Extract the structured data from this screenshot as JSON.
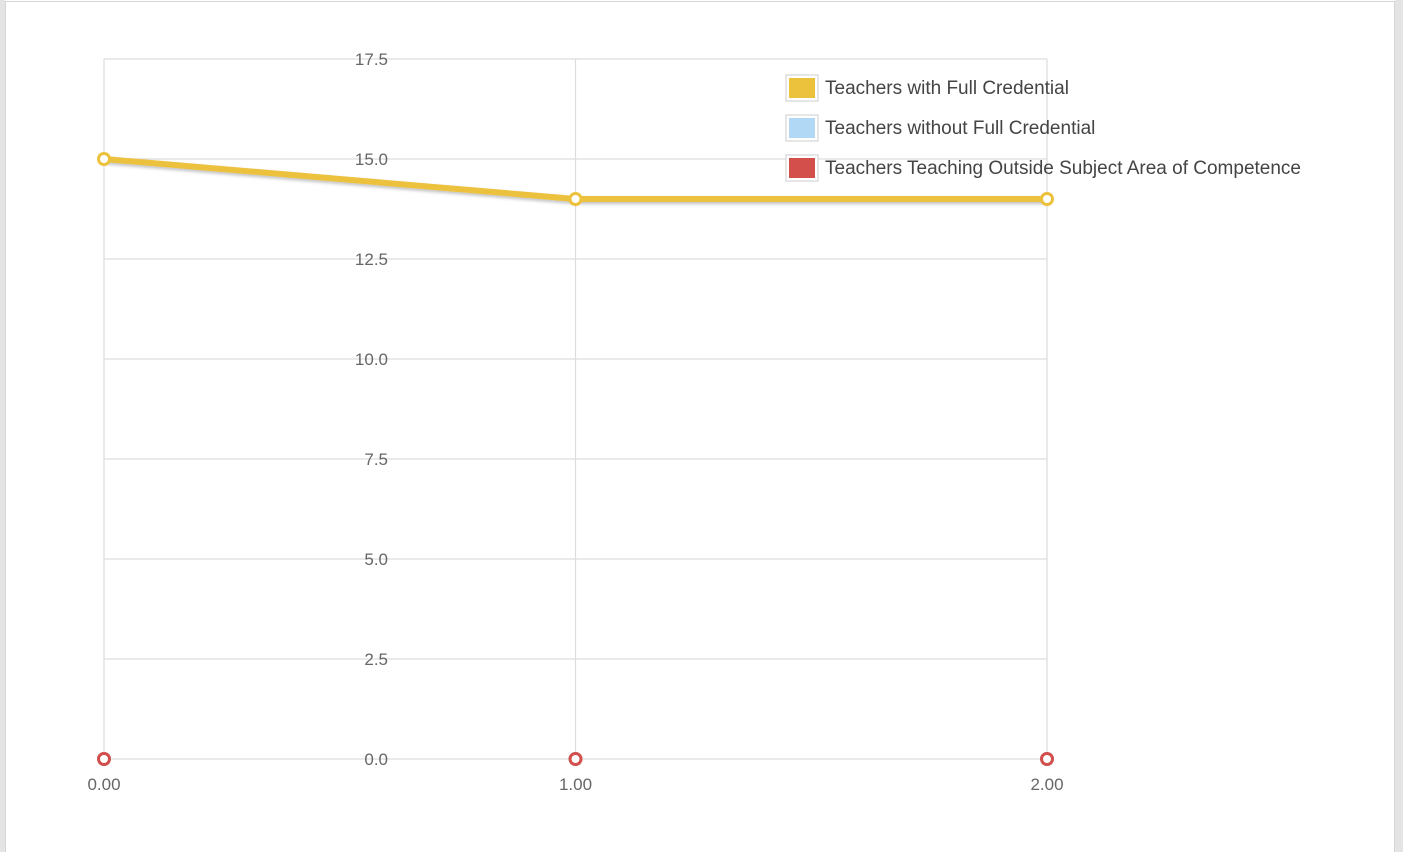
{
  "chart_data": {
    "type": "line",
    "x": [
      0,
      1,
      2
    ],
    "x_tick_labels": [
      "0.00",
      "1.00",
      "2.00"
    ],
    "y_tick_labels": [
      "0.0",
      "2.5",
      "5.0",
      "7.5",
      "10.0",
      "12.5",
      "15.0",
      "17.5"
    ],
    "ylim": [
      0,
      17.5
    ],
    "xlim": [
      0,
      2
    ],
    "grid": true,
    "legend_position": "top-right",
    "series": [
      {
        "name": "Teachers with Full Credential",
        "values": [
          15,
          14,
          14
        ],
        "color": "#ecc13c"
      },
      {
        "name": "Teachers without Full Credential",
        "values": [
          0,
          0,
          0
        ],
        "color": "#b1d9f6"
      },
      {
        "name": "Teachers Teaching Outside Subject Area of Competence",
        "values": [
          0,
          0,
          0
        ],
        "color": "#d24f4c"
      }
    ]
  }
}
